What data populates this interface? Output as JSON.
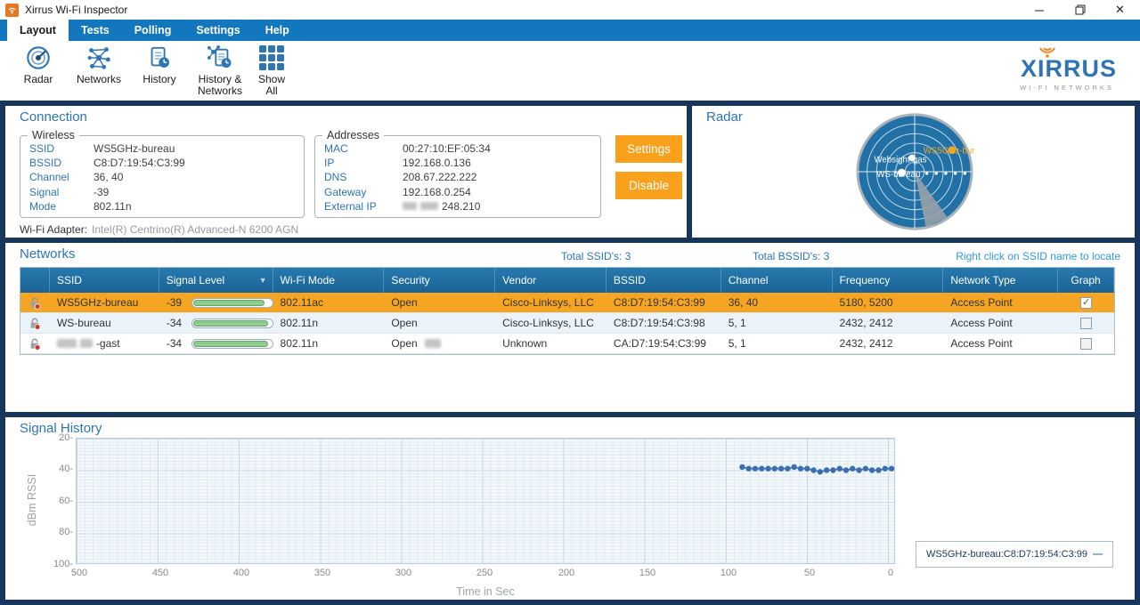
{
  "window": {
    "title": "Xirrus Wi-Fi Inspector"
  },
  "menu": {
    "tabs": [
      {
        "label": "Layout",
        "active": true
      },
      {
        "label": "Tests",
        "active": false
      },
      {
        "label": "Polling",
        "active": false
      },
      {
        "label": "Settings",
        "active": false
      },
      {
        "label": "Help",
        "active": false
      }
    ]
  },
  "toolbar": {
    "items": [
      {
        "label": "Radar"
      },
      {
        "label": "Networks"
      },
      {
        "label": "History"
      },
      {
        "label": "History & Networks"
      },
      {
        "label": "Show All"
      }
    ],
    "logo": {
      "text": "XIRRUS",
      "tagline": "WI-FI NETWORKS",
      "brand_blue": "#2E74B5",
      "brand_orange": "#F08019"
    }
  },
  "connection": {
    "title": "Connection",
    "wireless": {
      "legend": "Wireless",
      "fields": [
        {
          "label": "SSID",
          "value": "WS5GHz-bureau"
        },
        {
          "label": "BSSID",
          "value": "C8:D7:19:54:C3:99"
        },
        {
          "label": "Channel",
          "value": "36, 40"
        },
        {
          "label": "Signal",
          "value": "-39"
        },
        {
          "label": "Mode",
          "value": "802.11n"
        }
      ]
    },
    "addresses": {
      "legend": "Addresses",
      "fields": [
        {
          "label": "MAC",
          "value": "00:27:10:EF:05:34"
        },
        {
          "label": "IP",
          "value": "192.168.0.136"
        },
        {
          "label": "DNS",
          "value": "208.67.222.222"
        },
        {
          "label": "Gateway",
          "value": "192.168.0.254"
        },
        {
          "label": "External IP",
          "value": "248.210",
          "redacted_prefix": true
        }
      ]
    },
    "settings_button": "Settings",
    "disable_button": "Disable",
    "adapter_label": "Wi-Fi Adapter:",
    "adapter_value": "Intel(R) Centrino(R) Advanced-N 6200 AGN"
  },
  "radar": {
    "title": "Radar",
    "labels": {
      "orange": "WS5GHz-bur",
      "white1": "Websight-gas",
      "white2": "WS-bureau"
    }
  },
  "networks": {
    "title": "Networks",
    "total_ssids": "Total SSID's: 3",
    "total_bssids": "Total BSSID's:  3",
    "hint": "Right click on SSID name to locate",
    "columns": [
      "SSID",
      "Signal Level",
      "Wi-Fi Mode",
      "Security",
      "Vendor",
      "BSSID",
      "Channel",
      "Frequency",
      "Network Type",
      "Graph"
    ],
    "rows": [
      {
        "ssid": "WS5GHz-bureau",
        "ssid_redacted": false,
        "signal": "-39",
        "signal_pct": 91,
        "wifi_mode": "802.11ac",
        "security": "Open",
        "vendor": "Cisco-Linksys, LLC",
        "bssid": "C8:D7:19:54:C3:99",
        "channel": "36, 40",
        "frequency": "5180, 5200",
        "network_type": "Access Point",
        "graph_checked": true,
        "selected": true
      },
      {
        "ssid": "WS-bureau",
        "ssid_redacted": false,
        "signal": "-34",
        "signal_pct": 96,
        "wifi_mode": "802.11n",
        "security": "Open",
        "vendor": "Cisco-Linksys, LLC",
        "bssid": "C8:D7:19:54:C3:98",
        "channel": "5, 1",
        "frequency": "2432, 2412",
        "network_type": "Access Point",
        "graph_checked": false,
        "selected": false
      },
      {
        "ssid": "-gast",
        "ssid_redacted": true,
        "signal": "-34",
        "signal_pct": 96,
        "wifi_mode": "802.11n",
        "security": "Open",
        "vendor": "Unknown",
        "bssid": "CA:D7:19:54:C3:99",
        "channel": "5, 1",
        "frequency": "2432, 2412",
        "network_type": "Access Point",
        "graph_checked": false,
        "selected": false
      }
    ]
  },
  "signal_history": {
    "title": "Signal History",
    "legend_label": "WS5GHz-bureau:C8:D7:19:54:C3:99",
    "legend_marker": "—"
  },
  "chart_data": {
    "type": "line",
    "title": "Signal History",
    "xlabel": "Time in Sec",
    "ylabel": "dBm RSSI",
    "x_ticks": [
      500,
      450,
      400,
      350,
      300,
      250,
      200,
      150,
      100,
      50,
      0
    ],
    "y_tick_labels": [
      "20-",
      "40-",
      "60-",
      "80-",
      "100-"
    ],
    "y_ticks": [
      20,
      40,
      60,
      80,
      100
    ],
    "x_range": [
      505,
      0
    ],
    "y_range": [
      20,
      100
    ],
    "x_axis_reversed": true,
    "y_axis_inverted": true,
    "grid": true,
    "legend_position": "bottom-right",
    "series": [
      {
        "name": "WS5GHz-bureau:C8:D7:19:54:C3:99",
        "color": "#3B6FAF",
        "x": [
          92,
          88,
          84,
          80,
          76,
          72,
          68,
          64,
          60,
          56,
          52,
          48,
          44,
          40,
          36,
          32,
          28,
          24,
          20,
          16,
          12,
          8,
          4,
          0
        ],
        "y": [
          -38,
          -39,
          -39,
          -39,
          -39,
          -39,
          -39,
          -39,
          -38,
          -39,
          -39,
          -40,
          -41,
          -40,
          -40,
          -39,
          -40,
          -39,
          -40,
          -39,
          -40,
          -40,
          -39,
          -39
        ],
        "note": "dBm RSSI values; chart y-axis shows magnitude 20 (top) to 100 (bottom)"
      }
    ]
  }
}
